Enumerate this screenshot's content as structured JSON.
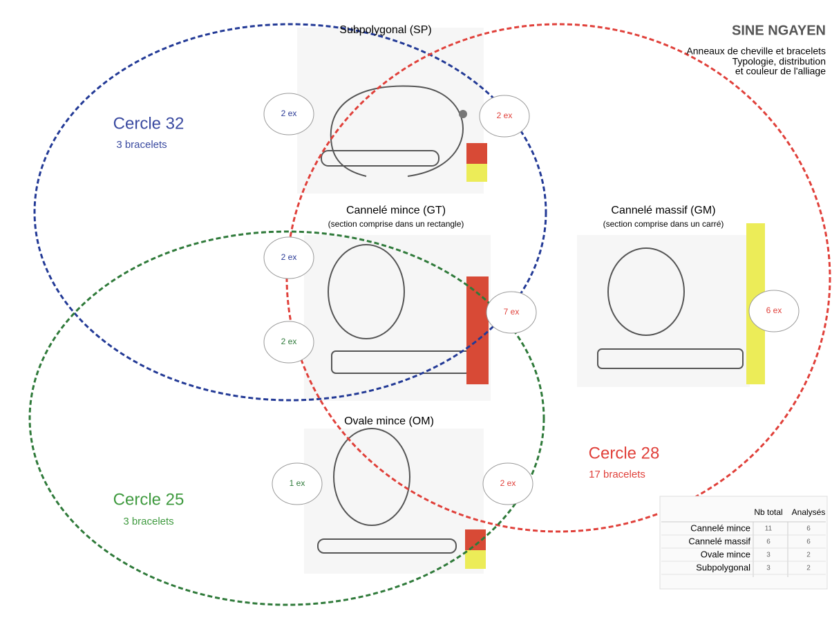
{
  "header": {
    "title": "SINE NGAYEN",
    "subtitle": [
      "Anneaux de cheville et bracelets",
      "Typologie, distribution",
      "et couleur de l'alliage"
    ]
  },
  "circles": [
    {
      "name": "Cercle 32",
      "count": "3 bracelets"
    },
    {
      "name": "Cercle 28",
      "count": "17 bracelets"
    },
    {
      "name": "Cercle 25",
      "count": "3 bracelets"
    }
  ],
  "types": [
    {
      "name": "Subpolygonal (SP)"
    },
    {
      "name": "Cannelé mince (GT)",
      "note": "(section comprise dans un rectangle)"
    },
    {
      "name": "Cannelé massif (GM)",
      "note": "(section comprise dans un carré)"
    },
    {
      "name": "Ovale mince (OM)"
    }
  ],
  "counts": [
    "2 ex",
    "2 ex",
    "2 ex",
    "2 ex",
    "7 ex",
    "6 ex",
    "1 ex",
    "2 ex"
  ],
  "table": {
    "columns": [
      "Nb total",
      "Analysés"
    ],
    "rows": [
      [
        "Cannelé mince",
        "11",
        "6"
      ],
      [
        "Cannelé massif",
        "6",
        "6"
      ],
      [
        "Ovale mince",
        "3",
        "2"
      ],
      [
        "Subpolygonal",
        "3",
        "2"
      ]
    ]
  }
}
